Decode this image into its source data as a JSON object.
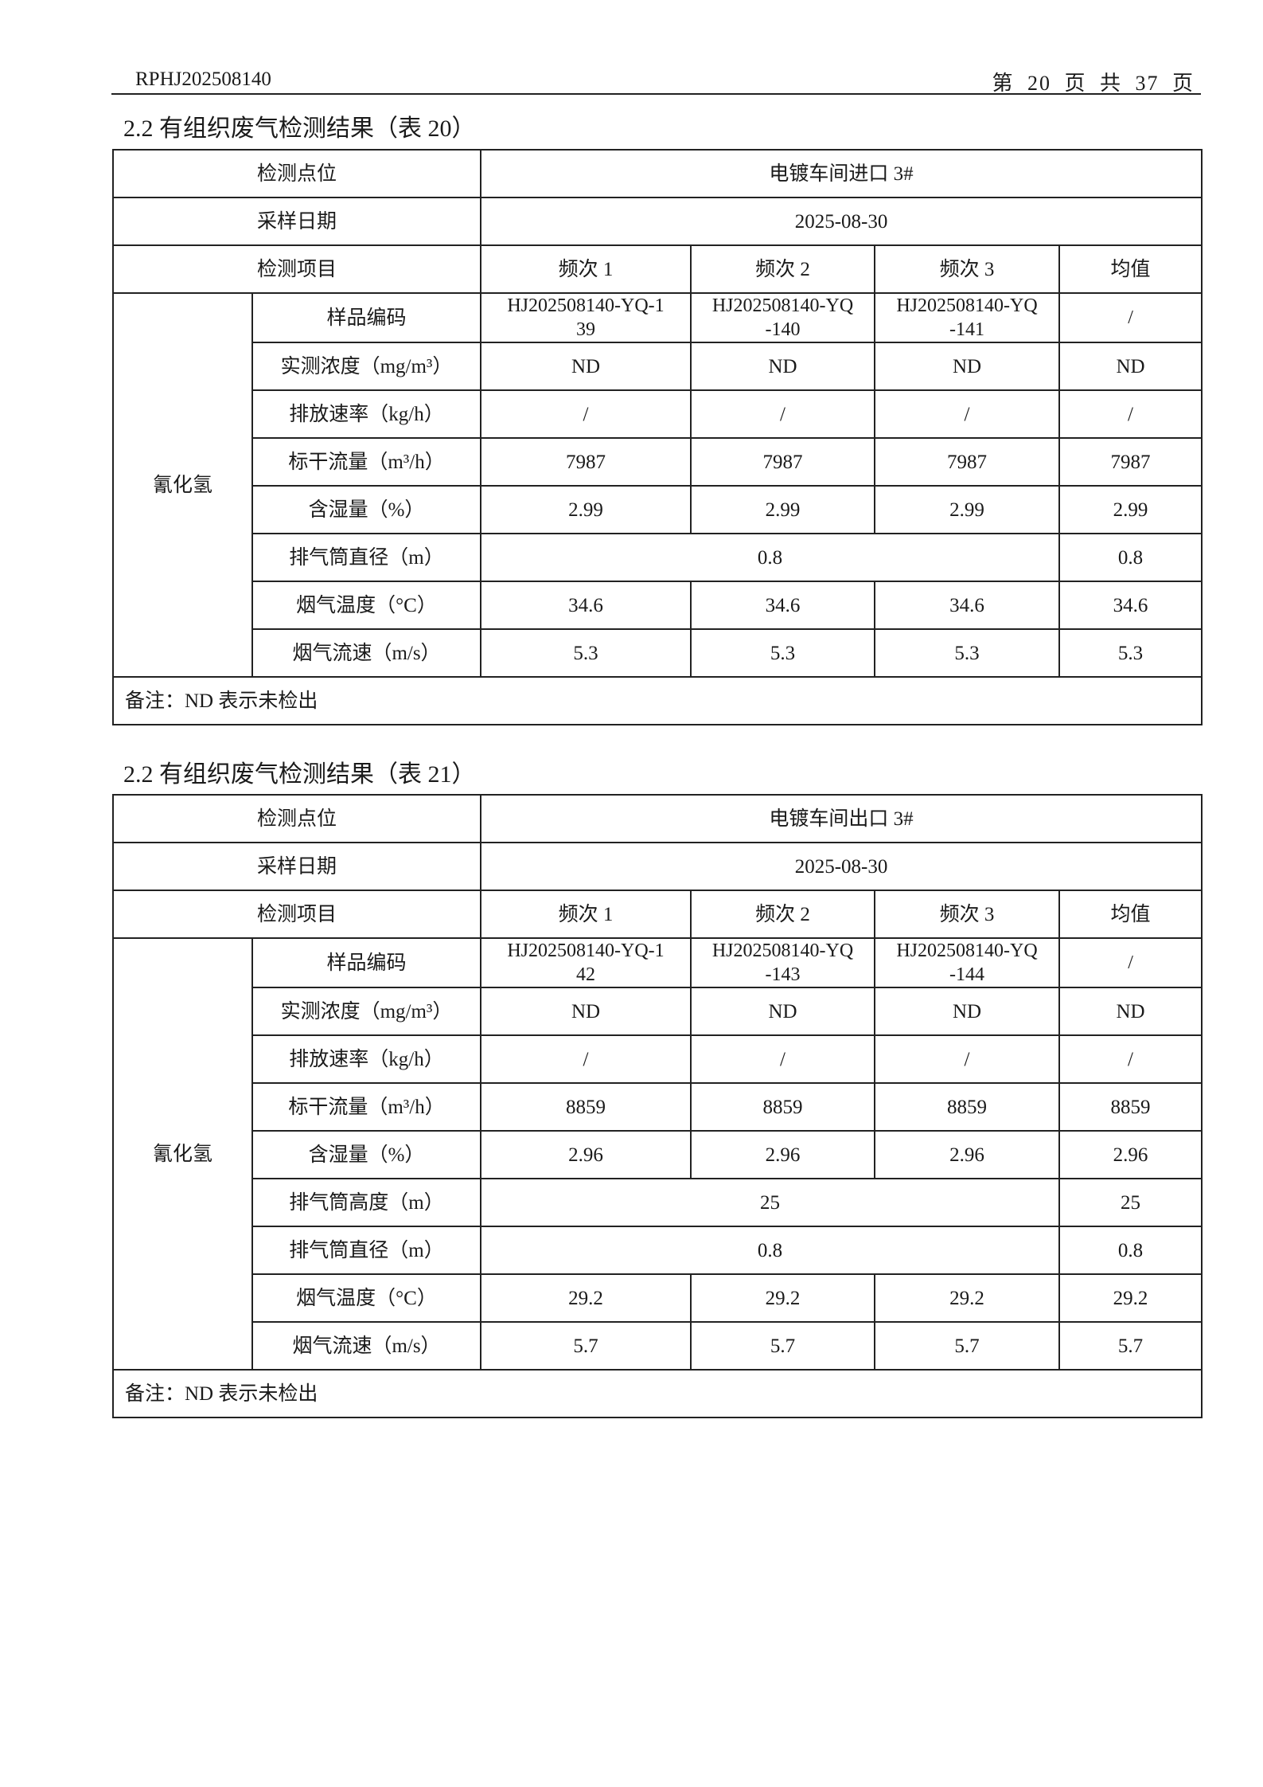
{
  "header": {
    "report_no": "RPHJ202508140",
    "page_info": "第 20 页 共 37 页"
  },
  "tables": [
    {
      "title": "2.2 有组织废气检测结果（表 20）",
      "location_label": "检测点位",
      "location": "电镀车间进口 3#",
      "date_label": "采样日期",
      "date": "2025-08-30",
      "item_label": "检测项目",
      "columns": [
        "频次 1",
        "频次 2",
        "频次 3",
        "均值"
      ],
      "pollutant": "氰化氢",
      "rows": [
        {
          "label": "样品编码",
          "values": [
            "HJ202508140-YQ-1\n39",
            "HJ202508140-YQ\n-140",
            "HJ202508140-YQ\n-141",
            "/"
          ]
        },
        {
          "label": "实测浓度（mg/m³）",
          "values": [
            "ND",
            "ND",
            "ND",
            "ND"
          ]
        },
        {
          "label": "排放速率（kg/h）",
          "values": [
            "/",
            "/",
            "/",
            "/"
          ]
        },
        {
          "label": "标干流量（m³/h）",
          "values": [
            "7987",
            "7987",
            "7987",
            "7987"
          ]
        },
        {
          "label": "含湿量（%）",
          "values": [
            "2.99",
            "2.99",
            "2.99",
            "2.99"
          ]
        },
        {
          "label": "排气筒直径（m）",
          "merged": "0.8",
          "mean": "0.8"
        },
        {
          "label": "烟气温度（°C）",
          "values": [
            "34.6",
            "34.6",
            "34.6",
            "34.6"
          ]
        },
        {
          "label": "烟气流速（m/s）",
          "values": [
            "5.3",
            "5.3",
            "5.3",
            "5.3"
          ]
        }
      ],
      "note": "备注：ND 表示未检出"
    },
    {
      "title": "2.2 有组织废气检测结果（表 21）",
      "location_label": "检测点位",
      "location": "电镀车间出口 3#",
      "date_label": "采样日期",
      "date": "2025-08-30",
      "item_label": "检测项目",
      "columns": [
        "频次 1",
        "频次 2",
        "频次 3",
        "均值"
      ],
      "pollutant": "氰化氢",
      "rows": [
        {
          "label": "样品编码",
          "values": [
            "HJ202508140-YQ-1\n42",
            "HJ202508140-YQ\n-143",
            "HJ202508140-YQ\n-144",
            "/"
          ]
        },
        {
          "label": "实测浓度（mg/m³）",
          "values": [
            "ND",
            "ND",
            "ND",
            "ND"
          ]
        },
        {
          "label": "排放速率（kg/h）",
          "values": [
            "/",
            "/",
            "/",
            "/"
          ]
        },
        {
          "label": "标干流量（m³/h）",
          "values": [
            "8859",
            "8859",
            "8859",
            "8859"
          ]
        },
        {
          "label": "含湿量（%）",
          "values": [
            "2.96",
            "2.96",
            "2.96",
            "2.96"
          ]
        },
        {
          "label": "排气筒高度（m）",
          "merged": "25",
          "mean": "25"
        },
        {
          "label": "排气筒直径（m）",
          "merged": "0.8",
          "mean": "0.8"
        },
        {
          "label": "烟气温度（°C）",
          "values": [
            "29.2",
            "29.2",
            "29.2",
            "29.2"
          ]
        },
        {
          "label": "烟气流速（m/s）",
          "values": [
            "5.7",
            "5.7",
            "5.7",
            "5.7"
          ]
        }
      ],
      "note": "备注：ND 表示未检出"
    }
  ]
}
